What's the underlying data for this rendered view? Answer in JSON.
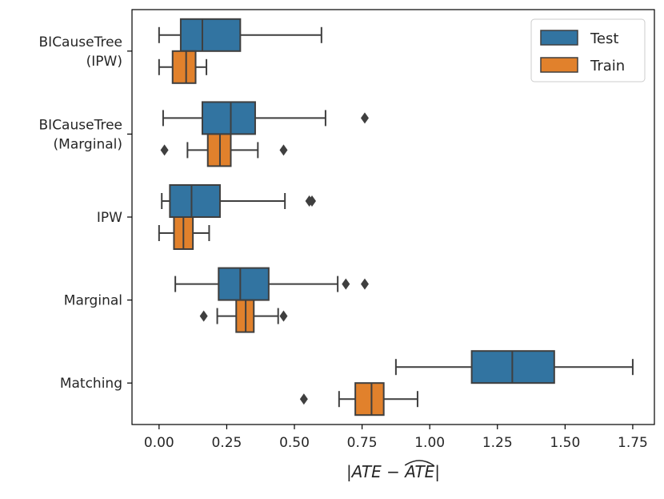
{
  "chart_data": {
    "type": "boxplot",
    "orientation": "horizontal",
    "categories": [
      [
        "BICauseTree",
        "(IPW)"
      ],
      [
        "BICauseTree",
        "(Marginal)"
      ],
      [
        "IPW"
      ],
      [
        "Marginal"
      ],
      [
        "Matching"
      ]
    ],
    "xlabel": "|ATE − ATE|",
    "xlabel_hat_text": "ATE",
    "xlim": [
      -0.1,
      1.83
    ],
    "xticks": [
      0.0,
      0.25,
      0.5,
      0.75,
      1.0,
      1.25,
      1.5,
      1.75
    ],
    "xtick_labels": [
      "0.00",
      "0.25",
      "0.50",
      "0.75",
      "1.00",
      "1.25",
      "1.50",
      "1.75"
    ],
    "legend": {
      "placement": "top-right",
      "entries": [
        "Test",
        "Train"
      ]
    },
    "series": [
      {
        "name": "Test",
        "color": "#3274a1",
        "boxes": [
          {
            "whislo": 0.0,
            "q1": 0.08,
            "med": 0.16,
            "q3": 0.3,
            "whishi": 0.6,
            "fliers": []
          },
          {
            "whislo": 0.015,
            "q1": 0.16,
            "med": 0.265,
            "q3": 0.355,
            "whishi": 0.615,
            "fliers": [
              0.76
            ]
          },
          {
            "whislo": 0.01,
            "q1": 0.04,
            "med": 0.12,
            "q3": 0.225,
            "whishi": 0.465,
            "fliers": [
              0.555,
              0.565
            ]
          },
          {
            "whislo": 0.06,
            "q1": 0.22,
            "med": 0.3,
            "q3": 0.405,
            "whishi": 0.66,
            "fliers": [
              0.69,
              0.76
            ]
          },
          {
            "whislo": 0.875,
            "q1": 1.155,
            "med": 1.305,
            "q3": 1.46,
            "whishi": 1.75,
            "fliers": []
          }
        ]
      },
      {
        "name": "Train",
        "color": "#e1812c",
        "boxes": [
          {
            "whislo": 0.0,
            "q1": 0.05,
            "med": 0.1,
            "q3": 0.135,
            "whishi": 0.175,
            "fliers": []
          },
          {
            "whislo": 0.105,
            "q1": 0.18,
            "med": 0.225,
            "q3": 0.265,
            "whishi": 0.365,
            "fliers": [
              0.02,
              0.46
            ]
          },
          {
            "whislo": 0.0,
            "q1": 0.055,
            "med": 0.09,
            "q3": 0.125,
            "whishi": 0.185,
            "fliers": []
          },
          {
            "whislo": 0.215,
            "q1": 0.285,
            "med": 0.32,
            "q3": 0.35,
            "whishi": 0.44,
            "fliers": [
              0.165,
              0.46
            ]
          },
          {
            "whislo": 0.665,
            "q1": 0.725,
            "med": 0.785,
            "q3": 0.83,
            "whishi": 0.955,
            "fliers": [
              0.535
            ]
          }
        ]
      }
    ]
  }
}
